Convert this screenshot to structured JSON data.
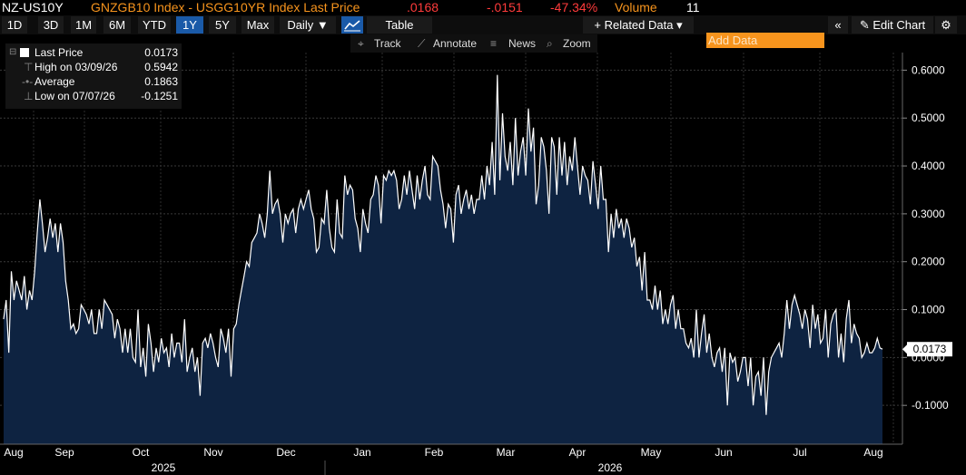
{
  "header": {
    "ticker": "NZ-US10Y",
    "security": "GNZGB10 Index - USGG10YR Index Last Price",
    "last_price": ".0168",
    "change": "-.0151",
    "change_pct": "-47.34%",
    "volume_label": "Volume",
    "volume_value": "11"
  },
  "toolbar": {
    "ranges": [
      "1D",
      "3D",
      "1M",
      "6M",
      "YTD",
      "1Y",
      "5Y",
      "Max"
    ],
    "active_range": "1Y",
    "frequency": "Daily ▼",
    "table_label": "Table",
    "related_data": "+ Related Data ▾",
    "add_data_placeholder": "Add Data",
    "edit_chart": "Edit Chart"
  },
  "subtoolbar": {
    "track": "Track",
    "annotate": "Annotate",
    "news": "News",
    "zoom": "Zoom"
  },
  "legend": {
    "last_price_label": "Last Price",
    "last_price_value": "0.0173",
    "high_label": "High on 03/09/26",
    "high_value": "0.5942",
    "average_label": "Average",
    "average_value": "0.1863",
    "low_label": "Low on 07/07/26",
    "low_value": "-0.1251"
  },
  "colors": {
    "line": "#ffffff",
    "area": "#0e2341",
    "active_button": "#1a5aa8",
    "add_data_bg": "#f7941d",
    "negative": "#ff3b3b",
    "security_text": "#f7941d"
  },
  "chart_data": {
    "type": "area",
    "xlabel": "",
    "ylabel": "",
    "ylim": [
      -0.2,
      0.65
    ],
    "yticks": [
      "0.6000",
      "0.5000",
      "0.4000",
      "0.3000",
      "0.2000",
      "0.1000",
      "0.0000",
      "-0.1000"
    ],
    "ytick_values": [
      0.6,
      0.5,
      0.4,
      0.3,
      0.2,
      0.1,
      0.0,
      -0.1
    ],
    "month_labels": [
      "Aug",
      "Sep",
      "Oct",
      "Nov",
      "Dec",
      "Jan",
      "Feb",
      "Mar",
      "Apr",
      "May",
      "Jun",
      "Jul",
      "Aug"
    ],
    "year_labels": [
      "2025",
      "2026"
    ],
    "last_value_label": "0.0173",
    "grid": true,
    "series": [
      {
        "values": [
          0.08,
          0.12,
          0.01,
          0.18,
          0.12,
          0.16,
          0.14,
          0.12,
          0.17,
          0.1,
          0.14,
          0.12,
          0.18,
          0.26,
          0.33,
          0.28,
          0.22,
          0.25,
          0.29,
          0.25,
          0.28,
          0.22,
          0.28,
          0.24,
          0.16,
          0.12,
          0.06,
          0.07,
          0.05,
          0.06,
          0.11,
          0.1,
          0.09,
          0.07,
          0.1,
          0.05,
          0.05,
          0.1,
          0.06,
          0.12,
          0.11,
          0.1,
          0.09,
          0.04,
          0.08,
          0.06,
          0.01,
          0.06,
          0.01,
          0.06,
          0.0,
          -0.01,
          0.1,
          -0.02,
          0.02,
          -0.04,
          0.07,
          0.03,
          -0.03,
          0.02,
          -0.01,
          0.04,
          0.01,
          0.02,
          -0.02,
          0.05,
          0.0,
          0.03,
          0.03,
          -0.01,
          0.08,
          -0.03,
          0.0,
          0.02,
          -0.03,
          0.0,
          -0.08,
          0.03,
          0.04,
          0.02,
          0.05,
          0.03,
          0.0,
          -0.02,
          0.06,
          0.04,
          0.01,
          0.06,
          -0.04,
          0.06,
          0.07,
          0.11,
          0.14,
          0.17,
          0.2,
          0.19,
          0.24,
          0.25,
          0.26,
          0.3,
          0.28,
          0.25,
          0.3,
          0.39,
          0.3,
          0.32,
          0.33,
          0.3,
          0.24,
          0.3,
          0.28,
          0.3,
          0.31,
          0.26,
          0.31,
          0.33,
          0.31,
          0.33,
          0.35,
          0.31,
          0.29,
          0.22,
          0.23,
          0.29,
          0.28,
          0.35,
          0.27,
          0.23,
          0.22,
          0.33,
          0.26,
          0.25,
          0.38,
          0.34,
          0.36,
          0.35,
          0.29,
          0.27,
          0.22,
          0.31,
          0.28,
          0.26,
          0.33,
          0.34,
          0.38,
          0.36,
          0.28,
          0.38,
          0.37,
          0.39,
          0.38,
          0.39,
          0.37,
          0.31,
          0.33,
          0.38,
          0.34,
          0.39,
          0.35,
          0.31,
          0.38,
          0.33,
          0.37,
          0.4,
          0.34,
          0.33,
          0.42,
          0.41,
          0.4,
          0.35,
          0.32,
          0.27,
          0.32,
          0.31,
          0.24,
          0.34,
          0.36,
          0.3,
          0.33,
          0.35,
          0.31,
          0.34,
          0.3,
          0.33,
          0.33,
          0.38,
          0.33,
          0.4,
          0.36,
          0.45,
          0.34,
          0.59,
          0.37,
          0.51,
          0.42,
          0.39,
          0.45,
          0.36,
          0.5,
          0.38,
          0.43,
          0.46,
          0.38,
          0.52,
          0.43,
          0.48,
          0.32,
          0.36,
          0.46,
          0.44,
          0.39,
          0.3,
          0.46,
          0.44,
          0.34,
          0.46,
          0.38,
          0.45,
          0.36,
          0.42,
          0.39,
          0.46,
          0.4,
          0.34,
          0.4,
          0.38,
          0.37,
          0.32,
          0.41,
          0.36,
          0.31,
          0.4,
          0.33,
          0.33,
          0.22,
          0.3,
          0.25,
          0.31,
          0.27,
          0.29,
          0.25,
          0.29,
          0.27,
          0.23,
          0.25,
          0.19,
          0.21,
          0.14,
          0.22,
          0.12,
          0.12,
          0.1,
          0.15,
          0.1,
          0.14,
          0.07,
          0.1,
          0.07,
          0.11,
          0.13,
          0.06,
          0.1,
          0.06,
          0.06,
          0.03,
          0.02,
          0.04,
          0.0,
          0.1,
          0.0,
          0.05,
          0.09,
          0.01,
          0.05,
          0.0,
          -0.02,
          0.01,
          0.02,
          -0.03,
          0.02,
          -0.1,
          0.01,
          -0.01,
          0.0,
          -0.05,
          -0.03,
          0.0,
          0.0,
          -0.06,
          0.0,
          -0.1,
          -0.04,
          -0.03,
          -0.08,
          0.0,
          -0.12,
          -0.03,
          0.0,
          0.01,
          0.02,
          0.03,
          0.0,
          0.05,
          0.12,
          0.06,
          0.11,
          0.13,
          0.11,
          0.09,
          0.06,
          0.1,
          0.08,
          0.02,
          0.11,
          0.06,
          0.09,
          0.03,
          0.04,
          0.1,
          0.0,
          0.07,
          0.09,
          0.1,
          0.0,
          0.05,
          -0.01,
          0.08,
          0.12,
          0.03,
          0.07,
          0.05,
          0.04,
          0.0,
          0.01,
          0.03,
          0.01,
          0.01,
          0.02,
          0.04,
          0.02,
          0.0173
        ]
      }
    ]
  }
}
